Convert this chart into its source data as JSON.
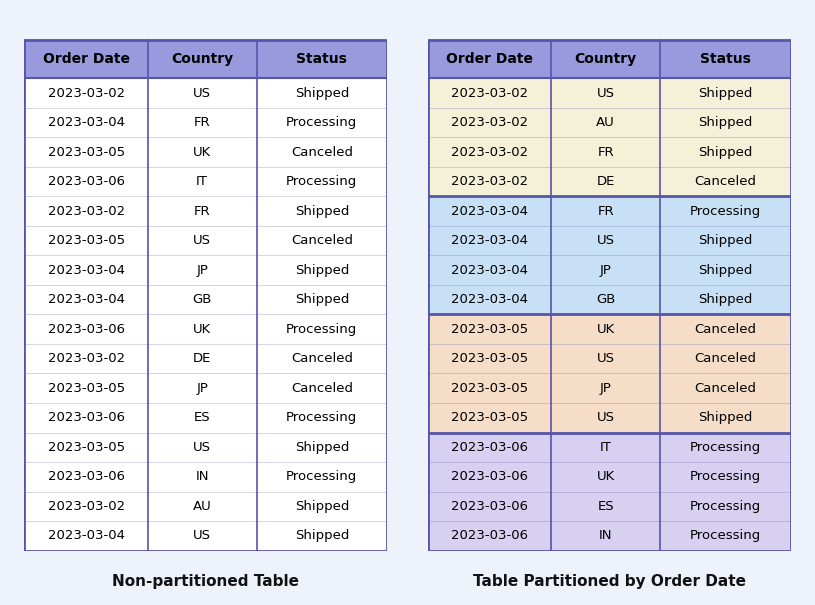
{
  "left_table": {
    "headers": [
      "Order Date",
      "Country",
      "Status"
    ],
    "rows": [
      [
        "2023-03-02",
        "US",
        "Shipped"
      ],
      [
        "2023-03-04",
        "FR",
        "Processing"
      ],
      [
        "2023-03-05",
        "UK",
        "Canceled"
      ],
      [
        "2023-03-06",
        "IT",
        "Processing"
      ],
      [
        "2023-03-02",
        "FR",
        "Shipped"
      ],
      [
        "2023-03-05",
        "US",
        "Canceled"
      ],
      [
        "2023-03-04",
        "JP",
        "Shipped"
      ],
      [
        "2023-03-04",
        "GB",
        "Shipped"
      ],
      [
        "2023-03-06",
        "UK",
        "Processing"
      ],
      [
        "2023-03-02",
        "DE",
        "Canceled"
      ],
      [
        "2023-03-05",
        "JP",
        "Canceled"
      ],
      [
        "2023-03-06",
        "ES",
        "Processing"
      ],
      [
        "2023-03-05",
        "US",
        "Shipped"
      ],
      [
        "2023-03-06",
        "IN",
        "Processing"
      ],
      [
        "2023-03-02",
        "AU",
        "Shipped"
      ],
      [
        "2023-03-04",
        "US",
        "Shipped"
      ]
    ],
    "title": "Non-partitioned Table",
    "header_color": "#9999dd",
    "row_color": "#ffffff",
    "partition_colors": null
  },
  "right_table": {
    "headers": [
      "Order Date",
      "Country",
      "Status"
    ],
    "rows": [
      [
        "2023-03-02",
        "US",
        "Shipped"
      ],
      [
        "2023-03-02",
        "AU",
        "Shipped"
      ],
      [
        "2023-03-02",
        "FR",
        "Shipped"
      ],
      [
        "2023-03-02",
        "DE",
        "Canceled"
      ],
      [
        "2023-03-04",
        "FR",
        "Processing"
      ],
      [
        "2023-03-04",
        "US",
        "Shipped"
      ],
      [
        "2023-03-04",
        "JP",
        "Shipped"
      ],
      [
        "2023-03-04",
        "GB",
        "Shipped"
      ],
      [
        "2023-03-05",
        "UK",
        "Canceled"
      ],
      [
        "2023-03-05",
        "US",
        "Canceled"
      ],
      [
        "2023-03-05",
        "JP",
        "Canceled"
      ],
      [
        "2023-03-05",
        "US",
        "Shipped"
      ],
      [
        "2023-03-06",
        "IT",
        "Processing"
      ],
      [
        "2023-03-06",
        "UK",
        "Processing"
      ],
      [
        "2023-03-06",
        "ES",
        "Processing"
      ],
      [
        "2023-03-06",
        "IN",
        "Processing"
      ]
    ],
    "title": "Table Partitioned by Order Date",
    "header_color": "#9999dd",
    "partition_colors": {
      "2023-03-02": "#f5f0d8",
      "2023-03-04": "#c8e0f5",
      "2023-03-05": "#f5ddc8",
      "2023-03-06": "#d8d0f0"
    }
  },
  "border_color": "#5555aa",
  "header_text_color": "#000000",
  "row_text_color": "#000000",
  "fig_background": "#eef2fb"
}
